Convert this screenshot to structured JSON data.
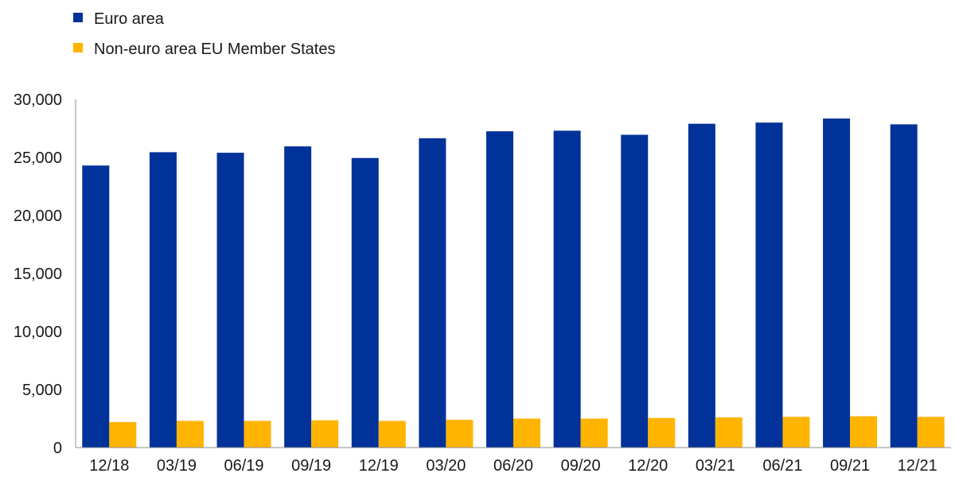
{
  "colors": {
    "euro_area": "#003299",
    "non_euro": "#ffb400",
    "axis": "#8c8c8c"
  },
  "legend": {
    "items": [
      {
        "label": "Euro area",
        "color": "#003299"
      },
      {
        "label": "Non-euro area EU Member States",
        "color": "#ffb400"
      }
    ],
    "placement": "top-left"
  },
  "chart_data": {
    "type": "bar",
    "title": "",
    "xlabel": "",
    "ylabel": "",
    "ylim": [
      0,
      30000
    ],
    "yticks": [
      0,
      5000,
      10000,
      15000,
      20000,
      25000,
      30000
    ],
    "ytick_labels": [
      "0",
      "5,000",
      "10,000",
      "15,000",
      "20,000",
      "25,000",
      "30,000"
    ],
    "grid": false,
    "categories": [
      "12/18",
      "03/19",
      "06/19",
      "09/19",
      "12/19",
      "03/20",
      "06/20",
      "09/20",
      "12/20",
      "03/21",
      "06/21",
      "09/21",
      "12/21"
    ],
    "series": [
      {
        "name": "Euro area",
        "color": "#003299",
        "values": [
          24300,
          25450,
          25400,
          25950,
          24950,
          26650,
          27250,
          27300,
          26950,
          27900,
          28000,
          28350,
          27850
        ]
      },
      {
        "name": "Non-euro area EU Member States",
        "color": "#ffb400",
        "values": [
          2200,
          2300,
          2300,
          2350,
          2300,
          2400,
          2500,
          2500,
          2550,
          2600,
          2650,
          2700,
          2650
        ]
      }
    ]
  }
}
